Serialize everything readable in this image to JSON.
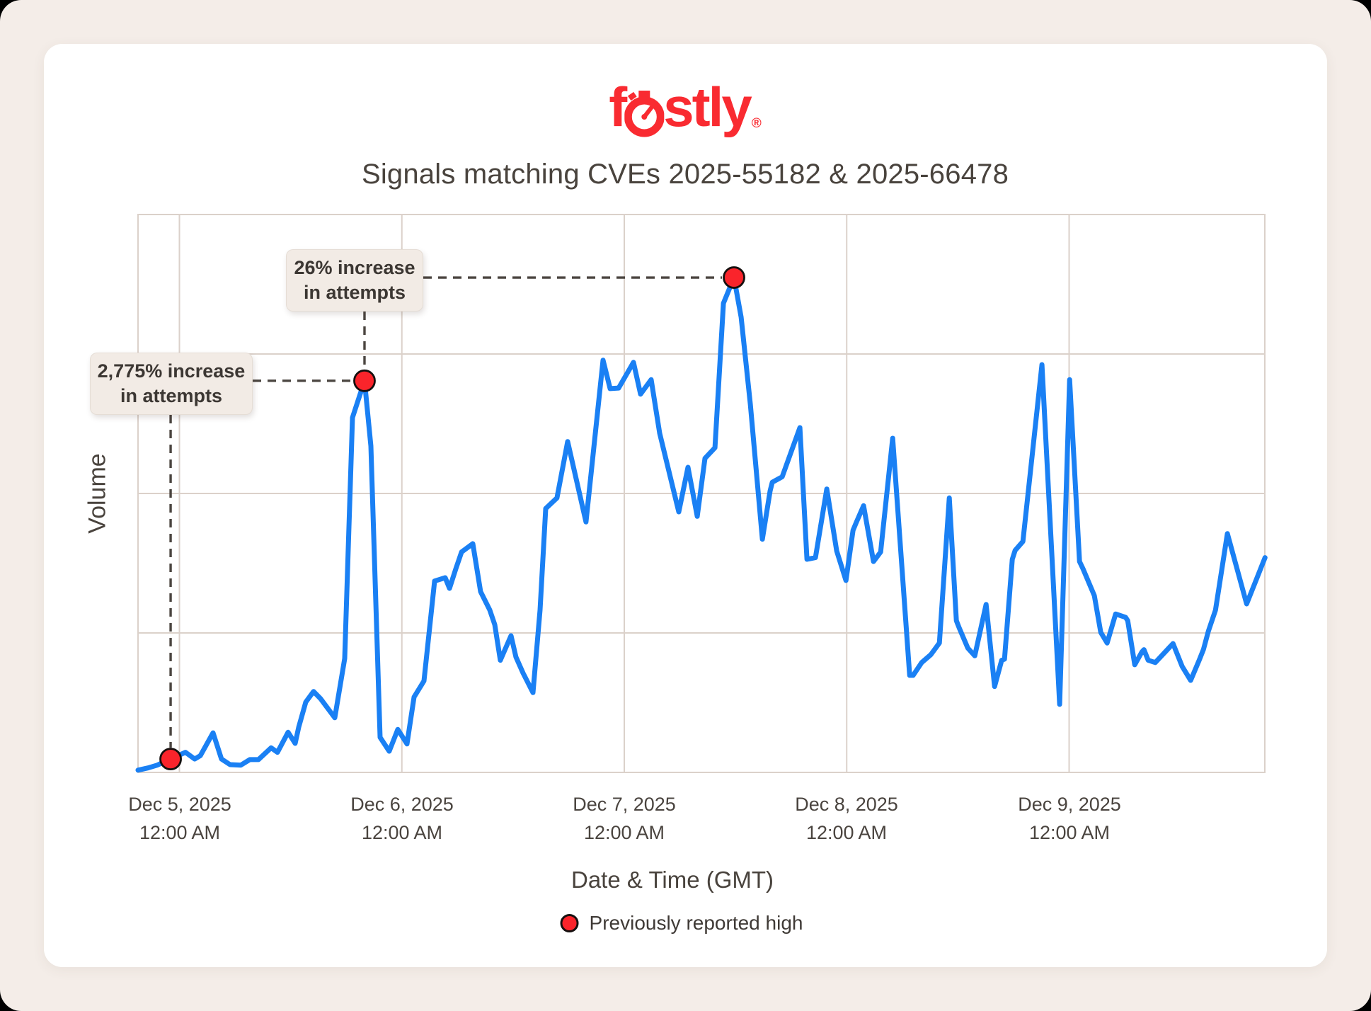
{
  "logo": {
    "brand": "fastly",
    "text_left": "f",
    "text_right": "stly",
    "registered_mark": "®"
  },
  "title": "Signals matching CVEs 2025-55182 & 2025-66478",
  "axes": {
    "y_label": "Volume",
    "x_label": "Date & Time (GMT)",
    "x_ticks": [
      {
        "line1": "Dec 5, 2025",
        "line2": "12:00 AM"
      },
      {
        "line1": "Dec 6, 2025",
        "line2": "12:00 AM"
      },
      {
        "line1": "Dec 7, 2025",
        "line2": "12:00 AM"
      },
      {
        "line1": "Dec 8, 2025",
        "line2": "12:00 AM"
      },
      {
        "line1": "Dec 9, 2025",
        "line2": "12:00 AM"
      }
    ]
  },
  "annotations": [
    {
      "id": "increase-2775",
      "line1": "2,775% increase",
      "line2": "in attempts"
    },
    {
      "id": "increase-26",
      "line1": "26% increase",
      "line2": "in attempts"
    }
  ],
  "legend": {
    "label": "Previously reported high"
  },
  "colors": {
    "logo_red": "#f92b31",
    "marker_red": "#fa242b",
    "marker_stroke": "#16100f",
    "line_blue": "#1a80f4",
    "grid": "#dbd1ca",
    "dash": "#4b4540",
    "page_bg": "#f4ede8",
    "card_bg": "#ffffff",
    "callout_bg": "#f2ebe5",
    "ink": "#49433d"
  },
  "chart_data": {
    "type": "line",
    "title": "Signals matching CVEs 2025-55182 & 2025-66478",
    "xlabel": "Date & Time (GMT)",
    "ylabel": "Volume",
    "x_unit": "hours since Dec 5, 2025 12:00 AM GMT",
    "y_unit": "relative volume (axis unlabeled), 0-100 of plot height",
    "xlim": [
      -4.5,
      117.2
    ],
    "ylim": [
      0,
      100
    ],
    "grid": true,
    "x_tick_hours": [
      0,
      24,
      48,
      72,
      96
    ],
    "y_gridline_values": [
      25,
      50,
      75
    ],
    "legend_position": "bottom-center",
    "series": [
      {
        "name": "Signal volume matching CVEs",
        "points": [
          [
            -4.47,
            0.4
          ],
          [
            -3.4,
            0.8
          ],
          [
            -2.41,
            1.3
          ],
          [
            -0.95,
            2.4
          ],
          [
            0.65,
            3.6
          ],
          [
            1.64,
            2.4
          ],
          [
            2.25,
            3.0
          ],
          [
            3.63,
            7.1
          ],
          [
            4.54,
            2.4
          ],
          [
            5.46,
            1.4
          ],
          [
            6.61,
            1.3
          ],
          [
            7.6,
            2.3
          ],
          [
            8.52,
            2.3
          ],
          [
            9.89,
            4.4
          ],
          [
            10.58,
            3.6
          ],
          [
            11.72,
            7.2
          ],
          [
            12.49,
            5.2
          ],
          [
            12.87,
            8.1
          ],
          [
            13.63,
            12.6
          ],
          [
            14.47,
            14.5
          ],
          [
            15.24,
            13.2
          ],
          [
            16.76,
            9.8
          ],
          [
            17.83,
            20.4
          ],
          [
            18.67,
            63.6
          ],
          [
            19.97,
            70.2
          ],
          [
            20.66,
            58.5
          ],
          [
            21.65,
            6.3
          ],
          [
            22.64,
            3.8
          ],
          [
            23.56,
            7.7
          ],
          [
            24.55,
            5.1
          ],
          [
            25.32,
            13.5
          ],
          [
            26.39,
            16.4
          ],
          [
            27.53,
            34.3
          ],
          [
            28.68,
            34.9
          ],
          [
            29.14,
            33.0
          ],
          [
            29.82,
            36.5
          ],
          [
            30.44,
            39.5
          ],
          [
            31.66,
            41.0
          ],
          [
            32.5,
            32.4
          ],
          [
            33.49,
            29.1
          ],
          [
            34.02,
            26.5
          ],
          [
            34.63,
            20.1
          ],
          [
            35.78,
            24.5
          ],
          [
            36.31,
            20.7
          ],
          [
            37.08,
            17.8
          ],
          [
            38.15,
            14.3
          ],
          [
            38.91,
            29.1
          ],
          [
            39.52,
            47.3
          ],
          [
            40.74,
            49.2
          ],
          [
            41.89,
            59.3
          ],
          [
            43.87,
            44.9
          ],
          [
            45.71,
            73.9
          ],
          [
            46.47,
            68.8
          ],
          [
            47.39,
            68.9
          ],
          [
            48.99,
            73.5
          ],
          [
            49.76,
            67.8
          ],
          [
            50.9,
            70.4
          ],
          [
            51.82,
            60.8
          ],
          [
            53.88,
            46.7
          ],
          [
            54.87,
            54.7
          ],
          [
            55.87,
            45.9
          ],
          [
            56.71,
            56.3
          ],
          [
            57.78,
            58.2
          ],
          [
            58.7,
            84.1
          ],
          [
            59.84,
            88.7
          ],
          [
            60.61,
            81.6
          ],
          [
            61.6,
            66.0
          ],
          [
            62.9,
            41.8
          ],
          [
            63.74,
            50.5
          ],
          [
            63.97,
            52.0
          ],
          [
            65.04,
            53.0
          ],
          [
            66.95,
            61.8
          ],
          [
            67.71,
            38.2
          ],
          [
            68.63,
            38.5
          ],
          [
            69.85,
            50.8
          ],
          [
            70.92,
            39.7
          ],
          [
            71.92,
            34.4
          ],
          [
            72.68,
            43.4
          ],
          [
            73.06,
            44.9
          ],
          [
            73.82,
            47.8
          ],
          [
            74.89,
            37.8
          ],
          [
            75.66,
            39.5
          ],
          [
            76.96,
            59.9
          ],
          [
            78.79,
            17.4
          ],
          [
            79.17,
            17.4
          ],
          [
            80.09,
            19.7
          ],
          [
            81.08,
            21.1
          ],
          [
            82.0,
            23.2
          ],
          [
            83.07,
            49.2
          ],
          [
            83.83,
            27.2
          ],
          [
            84.14,
            25.9
          ],
          [
            85.06,
            22.3
          ],
          [
            85.82,
            20.9
          ],
          [
            87.04,
            30.1
          ],
          [
            87.96,
            15.4
          ],
          [
            88.72,
            20.1
          ],
          [
            89.03,
            20.3
          ],
          [
            89.87,
            38.2
          ],
          [
            90.17,
            39.8
          ],
          [
            91.01,
            41.4
          ],
          [
            93.07,
            73.1
          ],
          [
            94.98,
            12.2
          ],
          [
            96.05,
            70.4
          ],
          [
            97.12,
            37.8
          ],
          [
            97.5,
            36.5
          ],
          [
            98.72,
            31.7
          ],
          [
            99.41,
            25.1
          ],
          [
            100.1,
            23.2
          ],
          [
            101.02,
            28.4
          ],
          [
            102.09,
            27.8
          ],
          [
            102.32,
            27.2
          ],
          [
            103.08,
            19.3
          ],
          [
            103.85,
            21.6
          ],
          [
            104.07,
            22.0
          ],
          [
            104.53,
            20.1
          ],
          [
            105.3,
            19.7
          ],
          [
            107.21,
            23.1
          ],
          [
            108.2,
            19.0
          ],
          [
            109.11,
            16.5
          ],
          [
            110.03,
            20.1
          ],
          [
            110.49,
            22.0
          ],
          [
            111.02,
            25.3
          ],
          [
            111.79,
            29.1
          ],
          [
            113.08,
            42.8
          ],
          [
            115.15,
            30.2
          ],
          [
            117.14,
            38.5
          ]
        ]
      }
    ],
    "markers": [
      {
        "x": -0.95,
        "y": 2.4,
        "label": "Previously reported high (baseline, Dec 5)"
      },
      {
        "x": 19.97,
        "y": 70.2,
        "label": "2,775% increase in attempts"
      },
      {
        "x": 59.84,
        "y": 88.7,
        "label": "26% increase in attempts"
      }
    ]
  }
}
